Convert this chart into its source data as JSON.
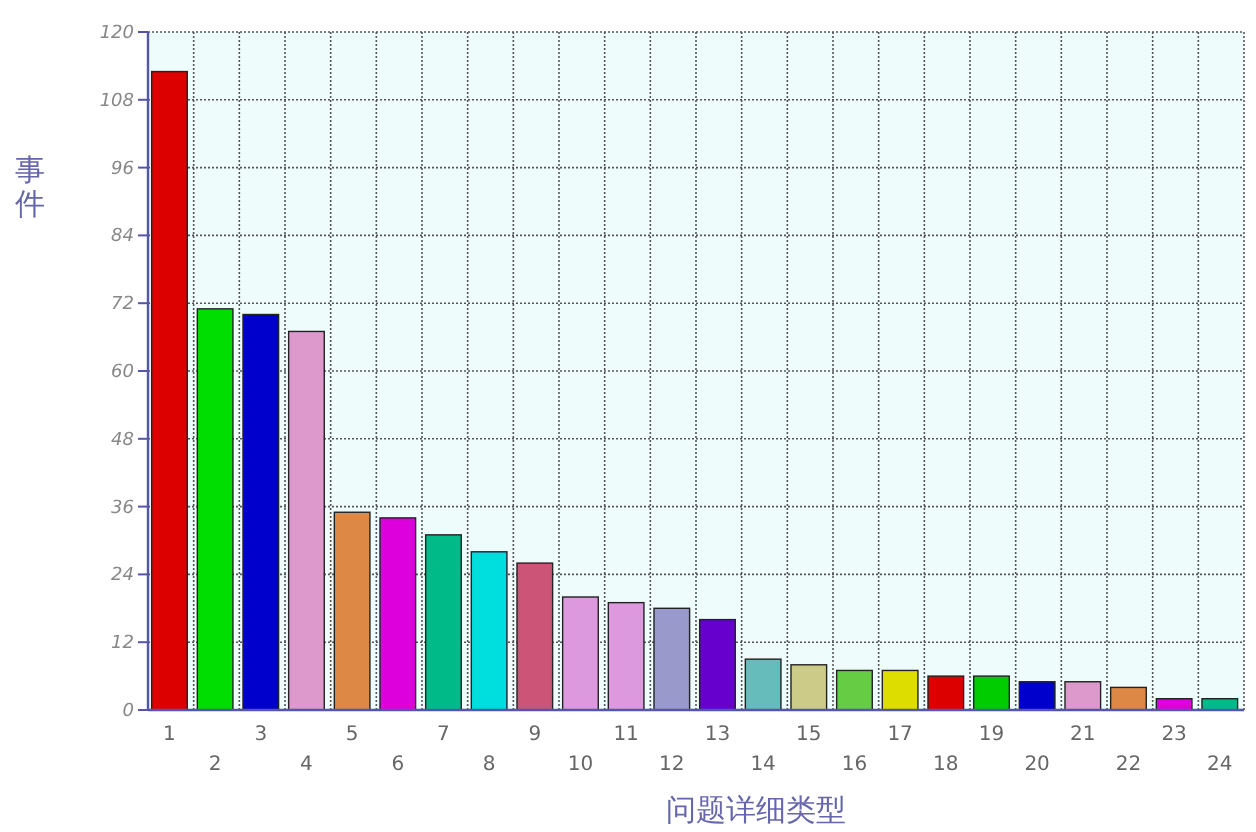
{
  "chart_data": {
    "type": "bar",
    "xlabel": "问题详细类型",
    "ylabel": "事件",
    "categories": [
      "1",
      "2",
      "3",
      "4",
      "5",
      "6",
      "7",
      "8",
      "9",
      "10",
      "11",
      "12",
      "13",
      "14",
      "15",
      "16",
      "17",
      "18",
      "19",
      "20",
      "21",
      "22",
      "23",
      "24"
    ],
    "values": [
      113,
      71,
      70,
      67,
      35,
      34,
      31,
      28,
      26,
      20,
      19,
      18,
      16,
      9,
      8,
      7,
      7,
      6,
      6,
      5,
      5,
      4,
      2,
      2
    ],
    "colors": [
      "#dd0000",
      "#00dd00",
      "#0000cc",
      "#dd99cc",
      "#dd8844",
      "#dd00dd",
      "#00bb88",
      "#00dddd",
      "#cc5577",
      "#dd99dd",
      "#dd99dd",
      "#9999cc",
      "#6600cc",
      "#66bbbb",
      "#cccc88",
      "#66cc44",
      "#dddd00",
      "#dd0000",
      "#00cc00",
      "#0000cc",
      "#dd99cc",
      "#dd8844",
      "#dd00dd",
      "#00bb88"
    ],
    "ylim": [
      0,
      120
    ],
    "yticks": [
      0,
      12,
      24,
      36,
      48,
      60,
      72,
      84,
      96,
      108,
      120
    ],
    "grid": true
  }
}
